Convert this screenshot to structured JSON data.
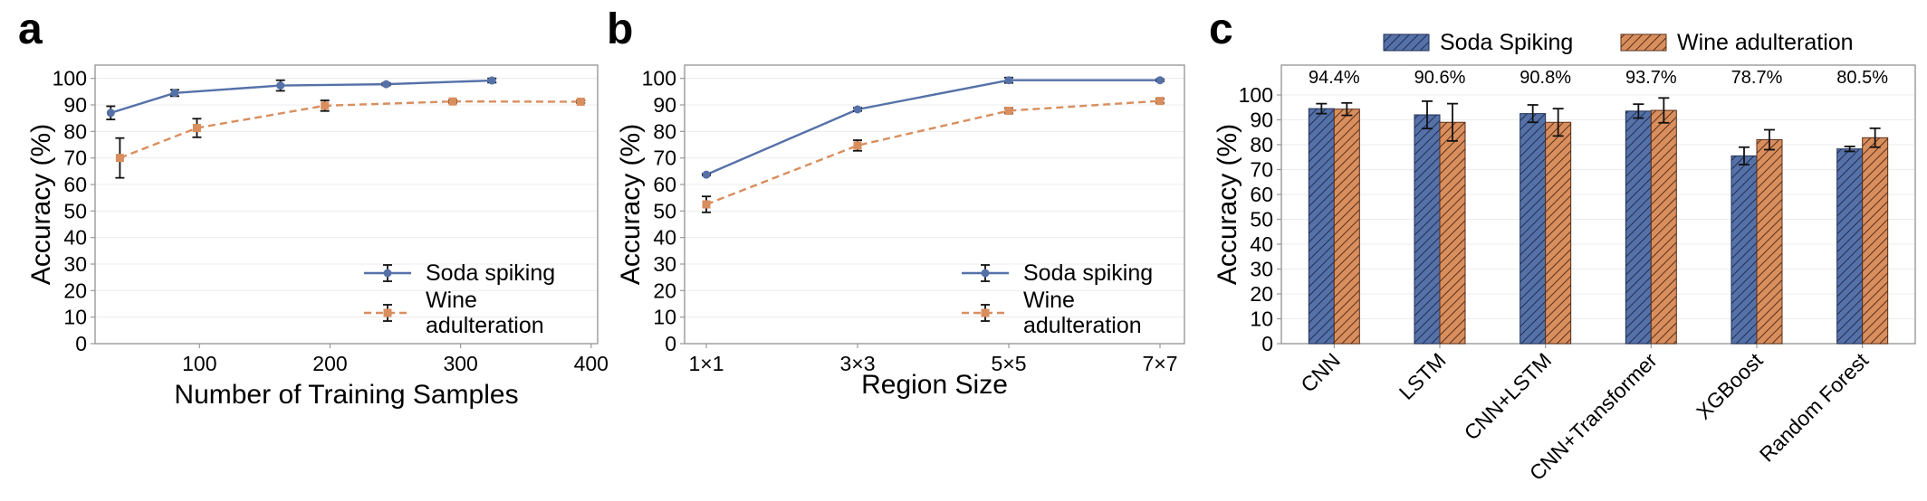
{
  "colors": {
    "soda": "#5571a8",
    "wine": "#d98e5e",
    "grid": "#ececec",
    "axis": "#999999",
    "error": "#111111"
  },
  "chart_data": [
    {
      "panel": "a",
      "type": "line",
      "xlabel": "Number of Training Samples",
      "ylabel": "Accuracy (%)",
      "xlim": [
        20,
        405
      ],
      "ylim": [
        0,
        105
      ],
      "xticks": [
        100,
        200,
        300,
        400
      ],
      "yticks": [
        0,
        10,
        20,
        30,
        40,
        50,
        60,
        70,
        80,
        90,
        100
      ],
      "grid": true,
      "legend_position": "lower-right",
      "series": [
        {
          "name": "Soda spiking",
          "style": "solid",
          "marker": "circle",
          "x": [
            32,
            81,
            162,
            243,
            324
          ],
          "y": [
            87.0,
            94.5,
            97.3,
            97.8,
            99.2
          ],
          "err": [
            2.5,
            1.2,
            2.0,
            0.5,
            0.8
          ]
        },
        {
          "name": "Wine adulteration",
          "style": "dashed",
          "marker": "square",
          "x": [
            39,
            98,
            196,
            294,
            392
          ],
          "y": [
            70.0,
            81.3,
            89.7,
            91.3,
            91.2
          ],
          "err": [
            7.5,
            3.5,
            2.0,
            0.5,
            0.5
          ]
        }
      ]
    },
    {
      "panel": "b",
      "type": "line",
      "xlabel": "Region Size",
      "ylabel": "Accuracy (%)",
      "categories": [
        "1×1",
        "3×3",
        "5×5",
        "7×7"
      ],
      "ylim": [
        0,
        105
      ],
      "yticks": [
        0,
        10,
        20,
        30,
        40,
        50,
        60,
        70,
        80,
        90,
        100
      ],
      "grid": true,
      "legend_position": "lower-right",
      "series": [
        {
          "name": "Soda spiking",
          "style": "solid",
          "marker": "circle",
          "values": [
            63.7,
            88.3,
            99.3,
            99.3
          ],
          "err": [
            0.3,
            0.6,
            1.0,
            0.4
          ]
        },
        {
          "name": "Wine adulteration",
          "style": "dashed",
          "marker": "square",
          "values": [
            52.5,
            74.7,
            87.8,
            91.5
          ],
          "err": [
            3.0,
            2.0,
            1.0,
            0.8
          ]
        }
      ]
    },
    {
      "panel": "c",
      "type": "bar",
      "ylabel": "Accuracy (%)",
      "categories": [
        "CNN",
        "LSTM",
        "CNN+LSTM",
        "CNN+Transformer",
        "XGBoost",
        "Random Forest"
      ],
      "annotations": [
        "94.4%",
        "90.6%",
        "90.8%",
        "93.7%",
        "78.7%",
        "80.5%"
      ],
      "ylim": [
        0,
        112
      ],
      "yticks": [
        0,
        10,
        20,
        30,
        40,
        50,
        60,
        70,
        80,
        90,
        100
      ],
      "grid": true,
      "legend_position": "top",
      "series": [
        {
          "name": "Soda Spiking",
          "hatch": "diagonal",
          "values": [
            94.5,
            92.0,
            92.5,
            93.5,
            75.5,
            78.3
          ],
          "err": [
            2.0,
            5.5,
            3.5,
            2.8,
            3.5,
            1.0
          ]
        },
        {
          "name": "Wine adulteration",
          "hatch": "diagonal",
          "values": [
            94.3,
            89.0,
            89.0,
            93.8,
            82.0,
            82.8
          ],
          "err": [
            2.5,
            7.5,
            5.5,
            5.0,
            4.0,
            3.8
          ]
        }
      ]
    }
  ]
}
